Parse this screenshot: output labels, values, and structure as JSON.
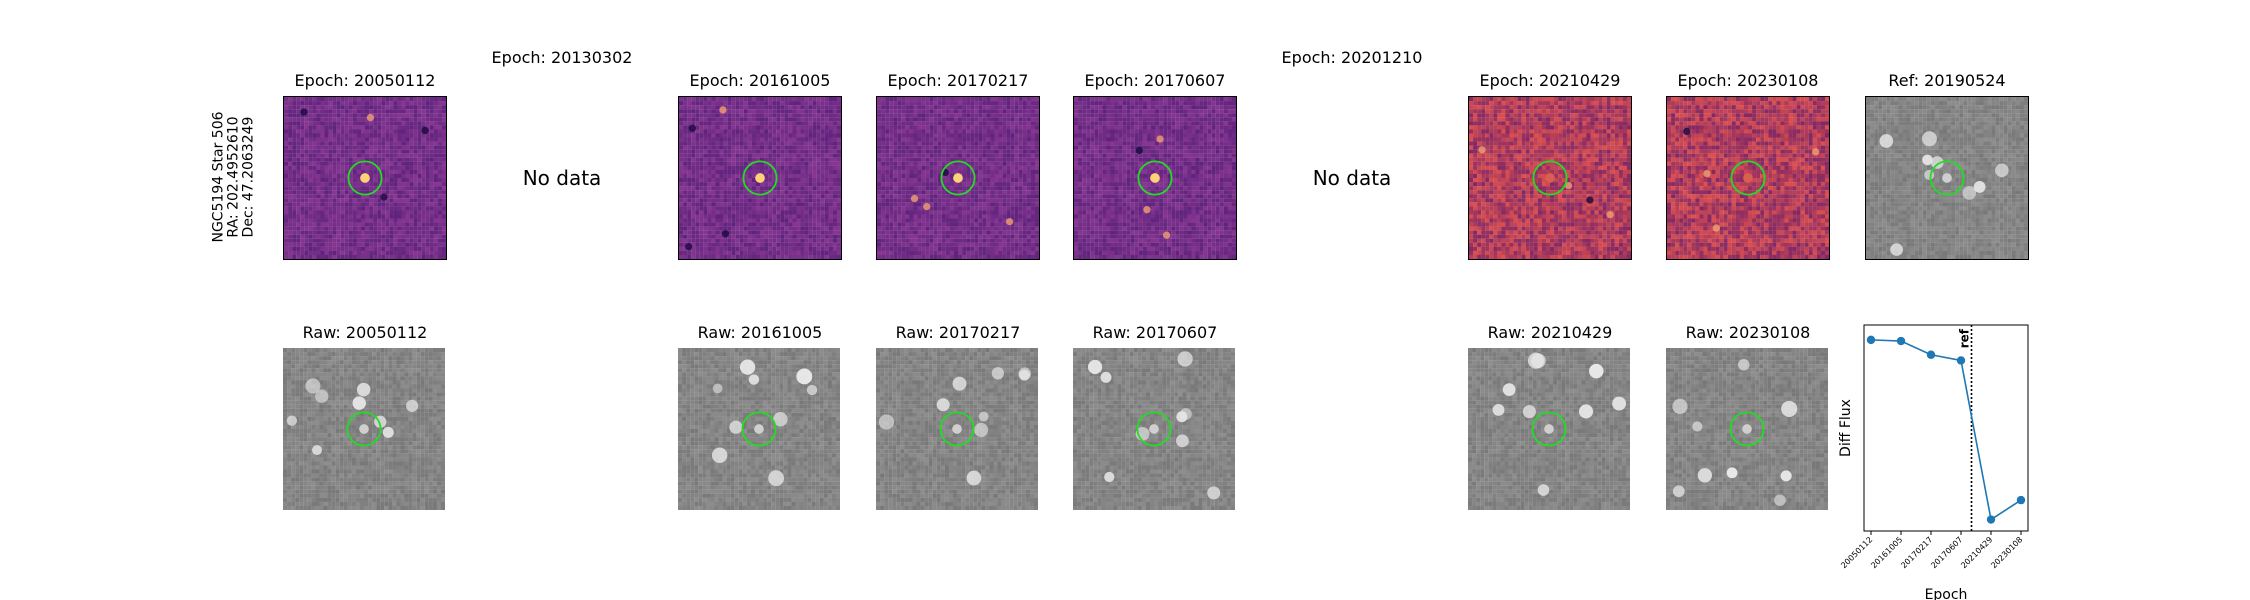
{
  "star": {
    "name_line": "NGC5194 Star 506",
    "ra_line": "RA: 202.4952610",
    "dec_line": "Dec: 47.2063249"
  },
  "diff_row": [
    {
      "title": "Epoch: 20050112",
      "has_data": true,
      "style": "diff"
    },
    {
      "title": "Epoch: 20130302",
      "has_data": false,
      "nodata_text": "No data"
    },
    {
      "title": "Epoch: 20161005",
      "has_data": true,
      "style": "diff"
    },
    {
      "title": "Epoch: 20170217",
      "has_data": true,
      "style": "diff"
    },
    {
      "title": "Epoch: 20170607",
      "has_data": true,
      "style": "diff"
    },
    {
      "title": "Epoch: 20201210",
      "has_data": false,
      "nodata_text": "No data"
    },
    {
      "title": "Epoch: 20210429",
      "has_data": true,
      "style": "diff-noisy"
    },
    {
      "title": "Epoch: 20230108",
      "has_data": true,
      "style": "diff-noisy"
    },
    {
      "title": "Ref: 20190524",
      "has_data": true,
      "style": "raw"
    }
  ],
  "raw_row": [
    {
      "title": "Raw: 20050112"
    },
    {
      "title": "Raw: 20161005"
    },
    {
      "title": "Raw: 20170217"
    },
    {
      "title": "Raw: 20170607"
    },
    {
      "title": "Raw: 20210429"
    },
    {
      "title": "Raw: 20230108"
    }
  ],
  "colors": {
    "diff_base": "#6a2a8a",
    "raw_base": "#8a8a8a",
    "aperture": "#22dd22",
    "series": "#1f77b4"
  },
  "chart_data": {
    "type": "line",
    "xlabel": "Epoch",
    "ylabel": "Diff Flux",
    "categories": [
      "20050112",
      "20161005",
      "20170217",
      "20170607",
      "20210429",
      "20230108"
    ],
    "series": [
      {
        "values": [
          0.92,
          0.91,
          0.79,
          0.74,
          -0.65,
          -0.48
        ]
      }
    ],
    "ylim": [
      -0.75,
      1.05
    ],
    "ref_line": {
      "label": "ref",
      "position_between": [
        "20170607",
        "20210429"
      ],
      "style": "dotted"
    },
    "grid": false
  }
}
